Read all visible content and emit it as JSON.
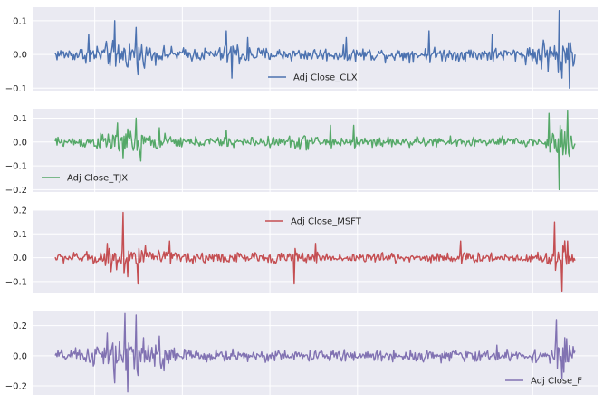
{
  "chart_data": [
    {
      "type": "line",
      "series": [
        {
          "name": "Adj Close_CLX",
          "color": "#4c72b0"
        }
      ],
      "yticks": [
        "0.1",
        "0.0",
        "−0.1"
      ],
      "ytick_values": [
        0.1,
        0.0,
        -0.1
      ],
      "ylim": [
        -0.11,
        0.14
      ],
      "legend_loc": "lower-center",
      "noise_scale": 0.012,
      "spikes": [
        [
          0.065,
          0.06
        ],
        [
          0.115,
          0.1
        ],
        [
          0.155,
          0.08
        ],
        [
          0.16,
          -0.06
        ],
        [
          0.33,
          0.07
        ],
        [
          0.34,
          -0.07
        ],
        [
          0.37,
          0.05
        ],
        [
          0.56,
          0.05
        ],
        [
          0.72,
          0.07
        ],
        [
          0.84,
          0.06
        ],
        [
          0.97,
          0.13
        ],
        [
          0.975,
          -0.07
        ],
        [
          0.99,
          -0.1
        ]
      ],
      "bursts": [
        [
          0.13,
          0.05,
          2.2
        ],
        [
          0.35,
          0.03,
          1.8
        ],
        [
          0.93,
          0.02,
          2.0
        ],
        [
          0.975,
          0.025,
          3.0
        ]
      ],
      "grid": true
    },
    {
      "type": "line",
      "series": [
        {
          "name": "Adj Close_TJX",
          "color": "#55a868"
        }
      ],
      "yticks": [
        "0.1",
        "0.0",
        "−0.1",
        "−0.2"
      ],
      "ytick_values": [
        0.1,
        0.0,
        -0.1,
        -0.2
      ],
      "ylim": [
        -0.21,
        0.14
      ],
      "legend_loc": "lower-left",
      "noise_scale": 0.013,
      "spikes": [
        [
          0.12,
          0.08
        ],
        [
          0.13,
          -0.07
        ],
        [
          0.155,
          0.1
        ],
        [
          0.165,
          -0.08
        ],
        [
          0.2,
          0.06
        ],
        [
          0.33,
          0.05
        ],
        [
          0.53,
          0.07
        ],
        [
          0.575,
          0.07
        ],
        [
          0.95,
          0.12
        ],
        [
          0.97,
          -0.2
        ],
        [
          0.985,
          0.13
        ],
        [
          0.99,
          -0.06
        ]
      ],
      "bursts": [
        [
          0.14,
          0.06,
          2.4
        ],
        [
          0.48,
          0.03,
          1.5
        ],
        [
          0.975,
          0.025,
          3.5
        ]
      ],
      "grid": true
    },
    {
      "type": "line",
      "series": [
        {
          "name": "Adj Close_MSFT",
          "color": "#c44e52"
        }
      ],
      "yticks": [
        "0.2",
        "0.1",
        "0.0",
        "−0.1"
      ],
      "ytick_values": [
        0.2,
        0.1,
        0.0,
        -0.1
      ],
      "ylim": [
        -0.15,
        0.2
      ],
      "legend_loc": "upper-center",
      "noise_scale": 0.013,
      "spikes": [
        [
          0.1,
          0.06
        ],
        [
          0.13,
          0.19
        ],
        [
          0.14,
          -0.08
        ],
        [
          0.16,
          -0.11
        ],
        [
          0.22,
          0.07
        ],
        [
          0.46,
          -0.11
        ],
        [
          0.5,
          0.06
        ],
        [
          0.78,
          0.07
        ],
        [
          0.96,
          0.15
        ],
        [
          0.975,
          -0.14
        ],
        [
          0.985,
          0.07
        ]
      ],
      "bursts": [
        [
          0.14,
          0.05,
          2.8
        ],
        [
          0.3,
          0.04,
          1.4
        ],
        [
          0.975,
          0.025,
          3.2
        ]
      ],
      "grid": true
    },
    {
      "type": "line",
      "series": [
        {
          "name": "Adj Close_F",
          "color": "#8172b2"
        }
      ],
      "yticks": [
        "0.2",
        "0.0",
        "−0.2"
      ],
      "ytick_values": [
        0.2,
        0.0,
        -0.2
      ],
      "ylim": [
        -0.26,
        0.3
      ],
      "legend_loc": "lower-right",
      "noise_scale": 0.022,
      "spikes": [
        [
          0.1,
          0.15
        ],
        [
          0.115,
          -0.18
        ],
        [
          0.135,
          0.28
        ],
        [
          0.14,
          -0.24
        ],
        [
          0.155,
          0.27
        ],
        [
          0.17,
          0.12
        ],
        [
          0.2,
          0.13
        ],
        [
          0.21,
          -0.1
        ],
        [
          0.85,
          0.07
        ],
        [
          0.965,
          0.24
        ],
        [
          0.975,
          -0.15
        ],
        [
          0.98,
          0.12
        ]
      ],
      "bursts": [
        [
          0.14,
          0.07,
          3.2
        ],
        [
          0.32,
          0.05,
          1.3
        ],
        [
          0.975,
          0.025,
          3.0
        ]
      ],
      "grid": true
    }
  ]
}
